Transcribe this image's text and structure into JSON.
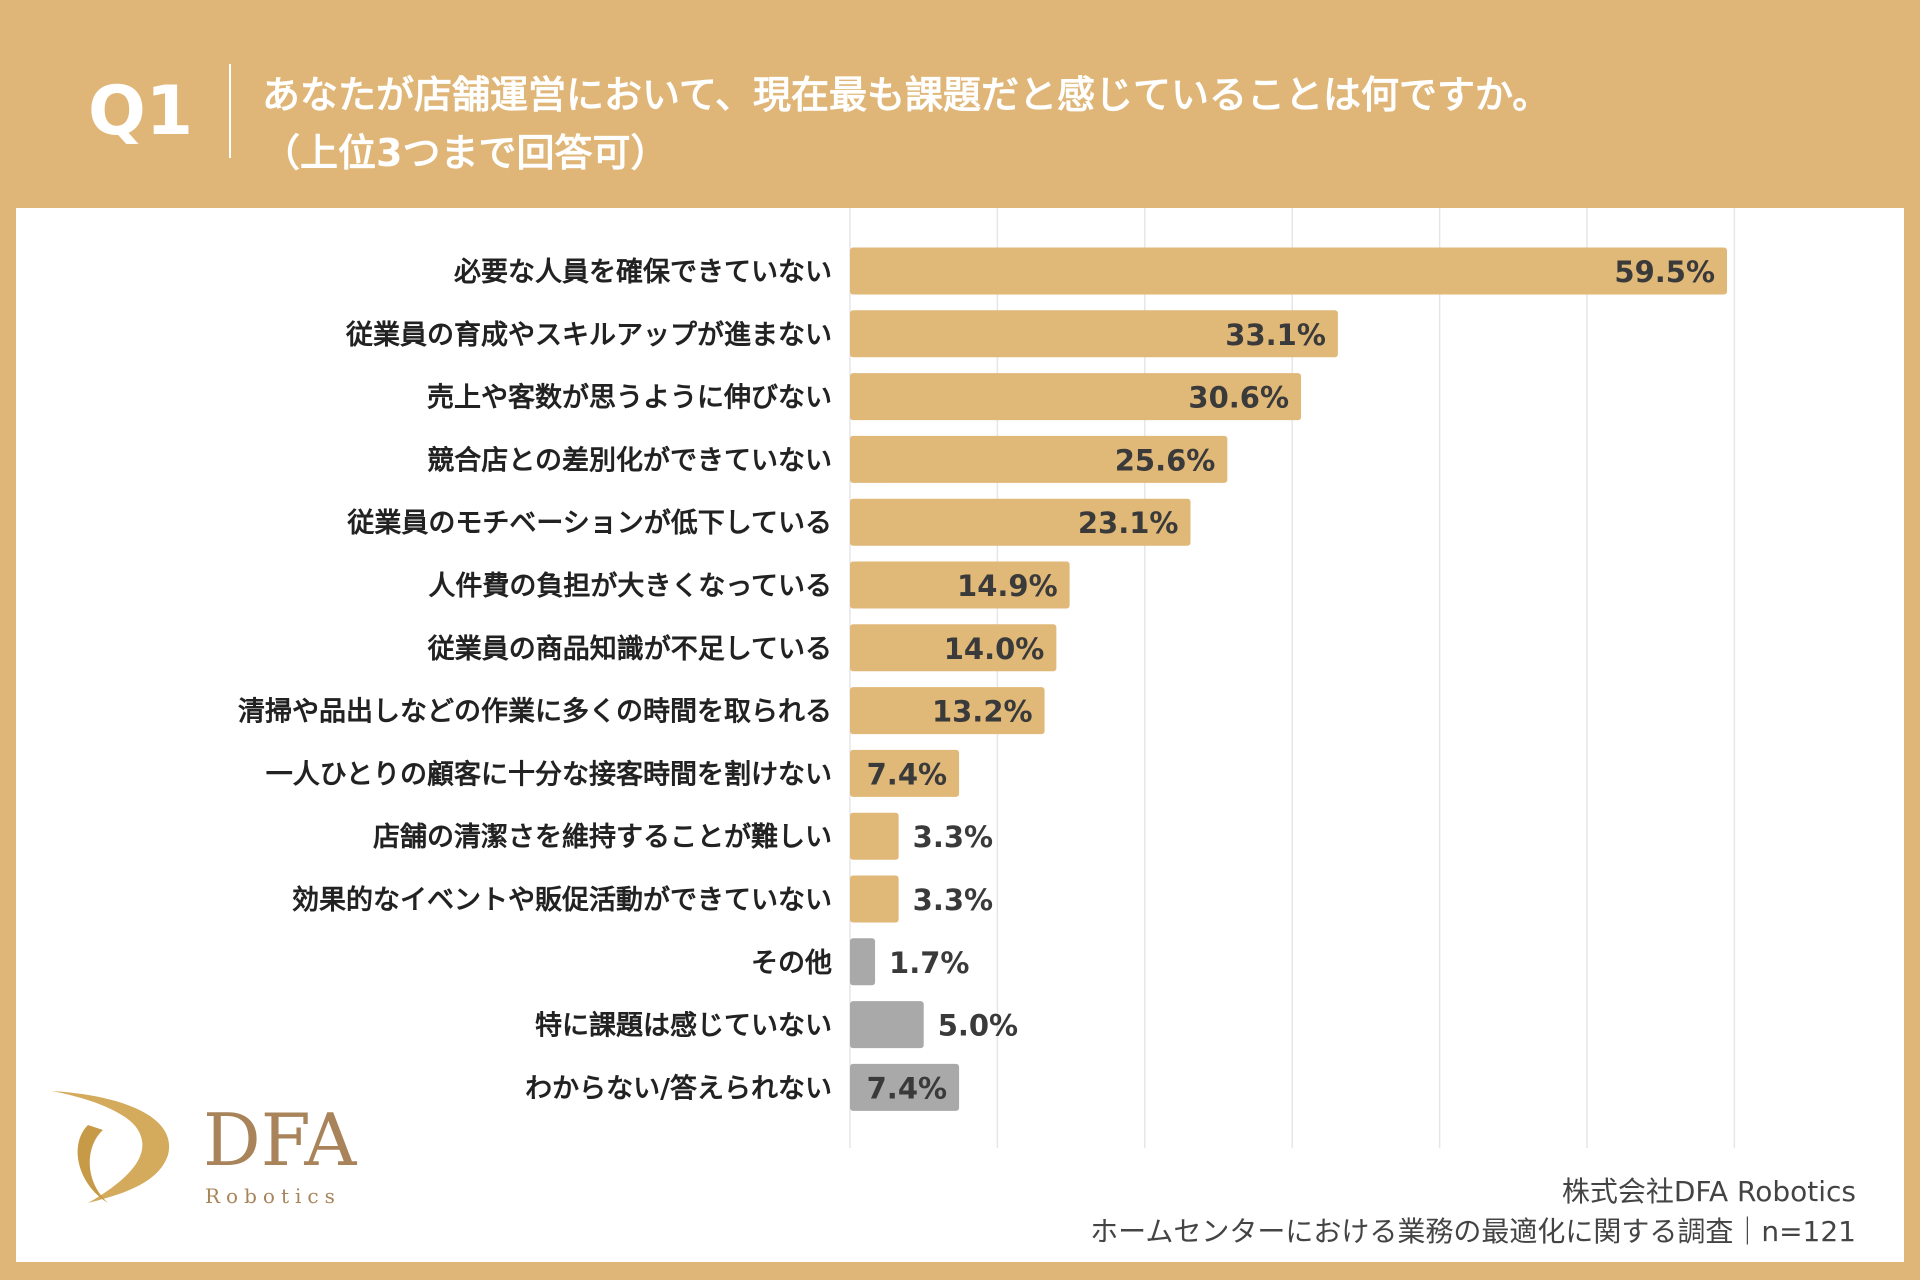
{
  "header": {
    "question_no": "Q1",
    "title_line1": "あなたが店舗運営において、現在最も課題だと感じていることは何ですか。",
    "title_line2": "（上位3つまで回答可）"
  },
  "colors": {
    "background": "#dfb677",
    "bar": "#e0b878",
    "bar_other": "#a9a9a9",
    "text": "#333333"
  },
  "chart_data": {
    "type": "bar",
    "orientation": "horizontal",
    "categories": [
      "必要な人員を確保できていない",
      "従業員の育成やスキルアップが進まない",
      "売上や客数が思うように伸びない",
      "競合店との差別化ができていない",
      "従業員のモチベーションが低下している",
      "人件費の負担が大きくなっている",
      "従業員の商品知識が不足している",
      "清掃や品出しなどの作業に多くの時間を取られる",
      "一人ひとりの顧客に十分な接客時間を割けない",
      "店舗の清潔さを維持することが難しい",
      "効果的なイベントや販促活動ができていない",
      "その他",
      "特に課題は感じていない",
      "わからない/答えられない"
    ],
    "values": [
      59.5,
      33.1,
      30.6,
      25.6,
      23.1,
      14.9,
      14.0,
      13.2,
      7.4,
      3.3,
      3.3,
      1.7,
      5.0,
      7.4
    ],
    "labels": [
      "59.5%",
      "33.1%",
      "30.6%",
      "25.6%",
      "23.1%",
      "14.9%",
      "14.0%",
      "13.2%",
      "7.4%",
      "3.3%",
      "3.3%",
      "1.7%",
      "5.0%",
      "7.4%"
    ],
    "gray_categories": [
      "その他",
      "特に課題は感じていない",
      "わからない/答えられない"
    ],
    "xlim": [
      0,
      60
    ],
    "grid": true,
    "unit": "%"
  },
  "logo": {
    "text": "DFA",
    "sub": "Robotics"
  },
  "credit": {
    "company": "株式会社DFA Robotics",
    "survey": "ホームセンターにおける業務の最適化に関する調査｜n=121"
  }
}
